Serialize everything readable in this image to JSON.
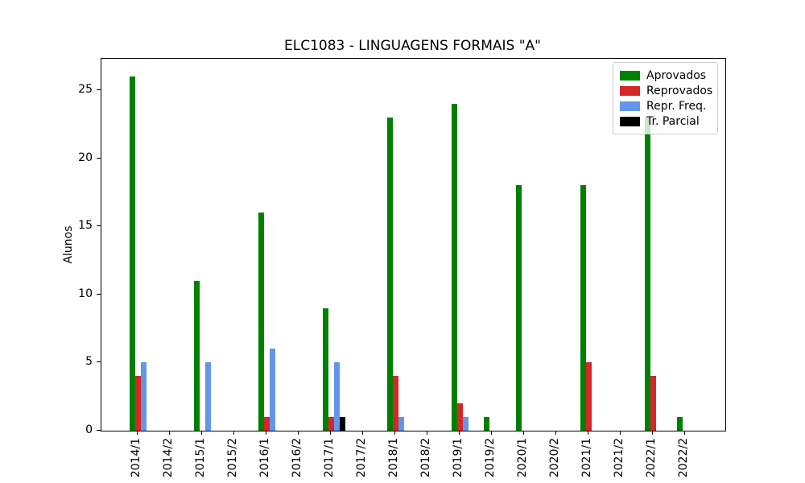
{
  "figure": {
    "title": "ELC1083 - LINGUAGENS FORMAIS \"A\"",
    "ylabel": "Alunos"
  },
  "colors": {
    "aprovados": "#008000",
    "reprovados": "#d62728",
    "repr_freq": "#6495ed",
    "tr_parcial": "#000000",
    "axis": "#000000",
    "legend_border": "#cccccc",
    "background": "#ffffff"
  },
  "chart_data": {
    "type": "bar",
    "title": "ELC1083 - LINGUAGENS FORMAIS \"A\"",
    "xlabel": "",
    "ylabel": "Alunos",
    "ylim": [
      0,
      27.3
    ],
    "yticks": [
      0,
      5,
      10,
      15,
      20,
      25
    ],
    "grid": false,
    "legend_position": "upper right",
    "categories": [
      "2014/1",
      "2014/2",
      "2015/1",
      "2015/2",
      "2016/1",
      "2016/2",
      "2017/1",
      "2017/2",
      "2018/1",
      "2018/2",
      "2019/1",
      "2019/2",
      "2020/1",
      "2020/2",
      "2021/1",
      "2021/2",
      "2022/1",
      "2022/2"
    ],
    "series": [
      {
        "name": "Aprovados",
        "color": "#008000",
        "values": [
          26,
          0,
          11,
          0,
          16,
          0,
          9,
          0,
          23,
          0,
          24,
          1,
          18,
          0,
          18,
          0,
          23,
          1
        ]
      },
      {
        "name": "Reprovados",
        "color": "#d62728",
        "values": [
          4,
          0,
          0,
          0,
          1,
          0,
          1,
          0,
          4,
          0,
          2,
          0,
          0,
          0,
          5,
          0,
          4,
          0
        ]
      },
      {
        "name": "Repr. Freq.",
        "color": "#6495ed",
        "values": [
          5,
          0,
          5,
          0,
          6,
          0,
          5,
          0,
          1,
          0,
          1,
          0,
          0,
          0,
          0,
          0,
          0,
          0
        ]
      },
      {
        "name": "Tr. Parcial",
        "color": "#000000",
        "values": [
          0,
          0,
          0,
          0,
          0,
          0,
          1,
          0,
          0,
          0,
          0,
          0,
          0,
          0,
          0,
          0,
          0,
          0
        ]
      }
    ]
  }
}
